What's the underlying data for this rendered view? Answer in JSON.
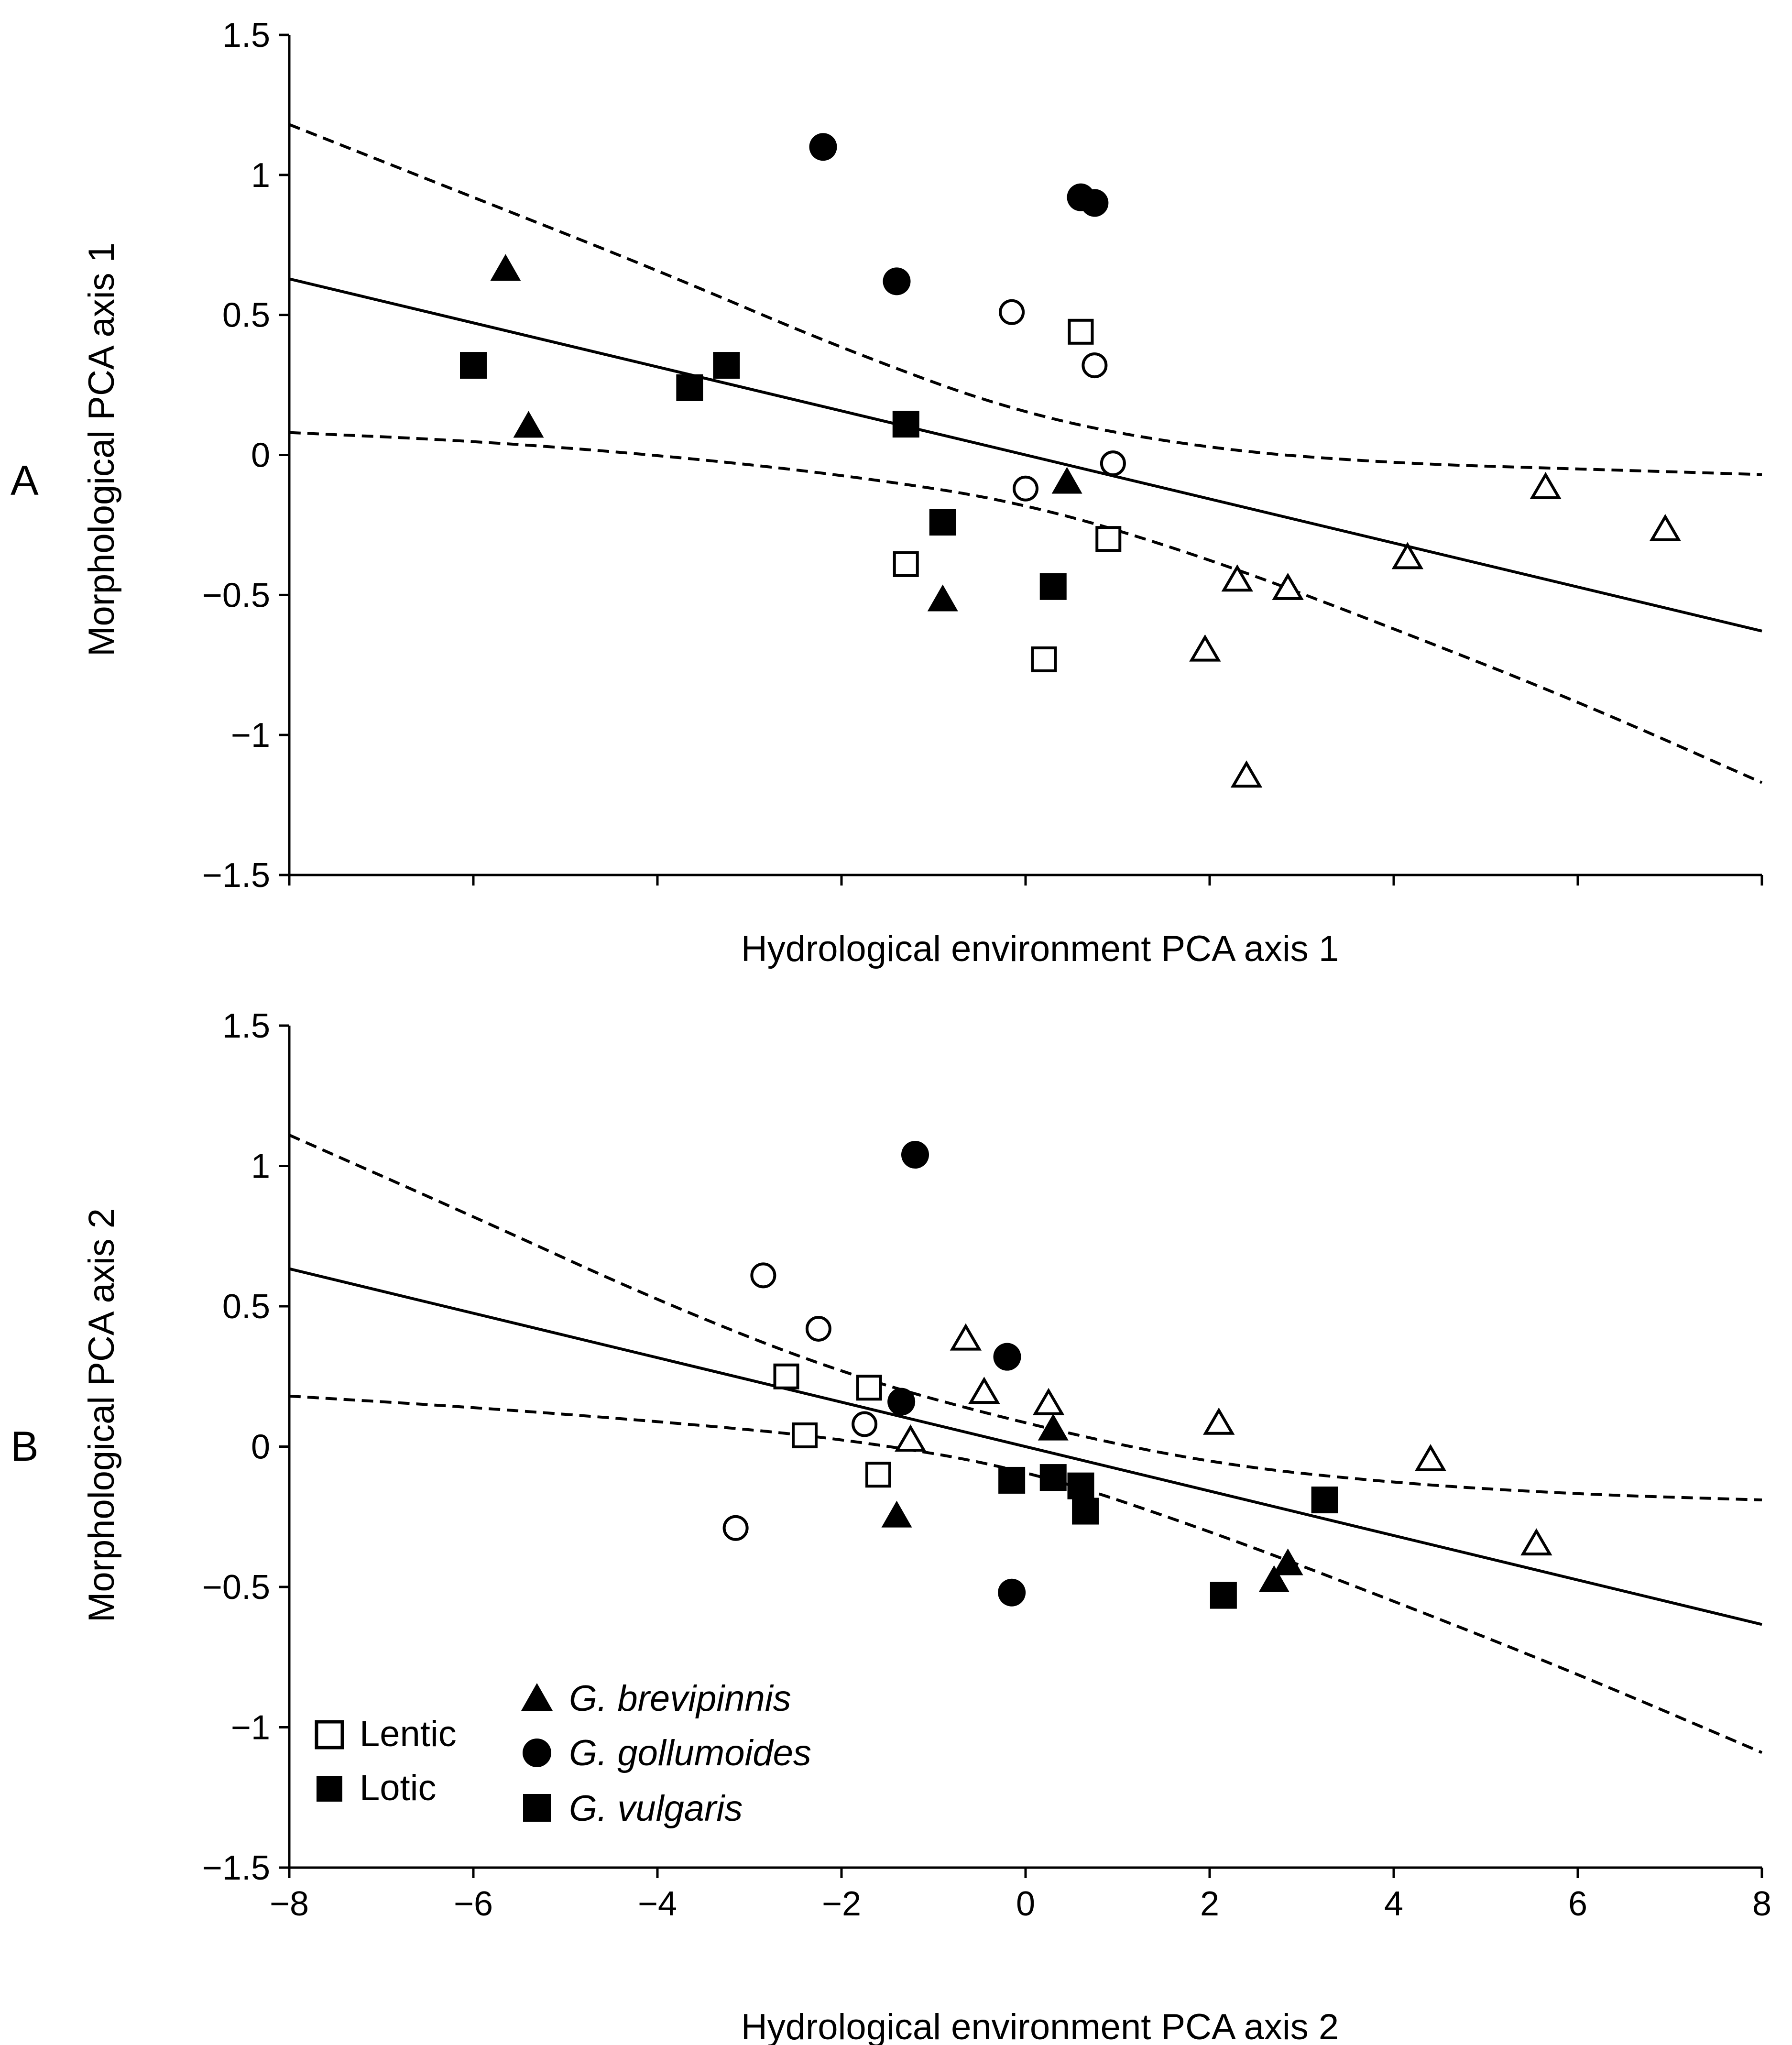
{
  "chart_data": [
    {
      "panel": "A",
      "type": "scatter",
      "xlabel": "Hydrological environment PCA axis 1",
      "ylabel": "Morphological PCA axis 1",
      "xlim": [
        -8,
        8
      ],
      "ylim": [
        -1.5,
        1.5
      ],
      "xticks": [],
      "yticks": [
        "1.5",
        "1",
        "0.5",
        "0",
        "−0.5",
        "−1",
        "−1.5"
      ],
      "regression": {
        "intercept": 0.0,
        "slope": -0.0786
      },
      "ci_upper": [
        [
          -8,
          1.18
        ],
        [
          -6,
          0.92
        ],
        [
          -4,
          0.66
        ],
        [
          -2,
          0.38
        ],
        [
          0,
          0.14
        ],
        [
          2,
          0.02
        ],
        [
          4,
          -0.03
        ],
        [
          6,
          -0.05
        ],
        [
          8,
          -0.07
        ]
      ],
      "ci_lower": [
        [
          -8,
          0.08
        ],
        [
          -6,
          0.05
        ],
        [
          -4,
          0.0
        ],
        [
          -2,
          -0.07
        ],
        [
          0,
          -0.17
        ],
        [
          2,
          -0.37
        ],
        [
          4,
          -0.62
        ],
        [
          6,
          -0.88
        ],
        [
          8,
          -1.17
        ]
      ],
      "points": [
        {
          "x": -5.65,
          "y": 0.66,
          "marker": "triangle",
          "fill": "filled"
        },
        {
          "x": -5.4,
          "y": 0.1,
          "marker": "triangle",
          "fill": "filled"
        },
        {
          "x": -0.9,
          "y": -0.52,
          "marker": "triangle",
          "fill": "filled"
        },
        {
          "x": 0.45,
          "y": -0.1,
          "marker": "triangle",
          "fill": "filled"
        },
        {
          "x": -2.2,
          "y": 1.1,
          "marker": "circle",
          "fill": "filled"
        },
        {
          "x": -1.4,
          "y": 0.62,
          "marker": "circle",
          "fill": "filled"
        },
        {
          "x": 0.6,
          "y": 0.92,
          "marker": "circle",
          "fill": "filled"
        },
        {
          "x": 0.75,
          "y": 0.9,
          "marker": "circle",
          "fill": "filled"
        },
        {
          "x": -6.0,
          "y": 0.32,
          "marker": "square",
          "fill": "filled"
        },
        {
          "x": -3.65,
          "y": 0.24,
          "marker": "square",
          "fill": "filled"
        },
        {
          "x": -3.25,
          "y": 0.32,
          "marker": "square",
          "fill": "filled"
        },
        {
          "x": -1.3,
          "y": 0.11,
          "marker": "square",
          "fill": "filled"
        },
        {
          "x": -0.9,
          "y": -0.24,
          "marker": "square",
          "fill": "filled"
        },
        {
          "x": 0.3,
          "y": -0.47,
          "marker": "square",
          "fill": "filled"
        },
        {
          "x": -0.15,
          "y": 0.51,
          "marker": "circle",
          "fill": "open"
        },
        {
          "x": 0.75,
          "y": 0.32,
          "marker": "circle",
          "fill": "open"
        },
        {
          "x": 0.0,
          "y": -0.12,
          "marker": "circle",
          "fill": "open"
        },
        {
          "x": 0.95,
          "y": -0.03,
          "marker": "circle",
          "fill": "open"
        },
        {
          "x": 0.6,
          "y": 0.44,
          "marker": "square",
          "fill": "open"
        },
        {
          "x": 0.9,
          "y": -0.3,
          "marker": "square",
          "fill": "open"
        },
        {
          "x": -1.3,
          "y": -0.39,
          "marker": "square",
          "fill": "open"
        },
        {
          "x": 0.2,
          "y": -0.73,
          "marker": "square",
          "fill": "open"
        },
        {
          "x": 1.95,
          "y": -0.7,
          "marker": "triangle",
          "fill": "open"
        },
        {
          "x": 2.3,
          "y": -0.45,
          "marker": "triangle",
          "fill": "open"
        },
        {
          "x": 2.4,
          "y": -1.15,
          "marker": "triangle",
          "fill": "open"
        },
        {
          "x": 2.85,
          "y": -0.48,
          "marker": "triangle",
          "fill": "open"
        },
        {
          "x": 4.15,
          "y": -0.37,
          "marker": "triangle",
          "fill": "open"
        },
        {
          "x": 5.65,
          "y": -0.12,
          "marker": "triangle",
          "fill": "open"
        },
        {
          "x": 6.95,
          "y": -0.27,
          "marker": "triangle",
          "fill": "open"
        }
      ]
    },
    {
      "panel": "B",
      "type": "scatter",
      "xlabel": "Hydrological environment PCA axis 2",
      "ylabel": "Morphological PCA axis 2",
      "xlim": [
        -8,
        8
      ],
      "ylim": [
        -1.5,
        1.5
      ],
      "xticks": [
        "−8",
        "−6",
        "−4",
        "−2",
        "0",
        "2",
        "4",
        "6",
        "8"
      ],
      "yticks": [
        "1.5",
        "1",
        "0.5",
        "0",
        "−0.5",
        "−1",
        "−1.5"
      ],
      "regression": {
        "intercept": 0.0,
        "slope": -0.0792
      },
      "ci_upper": [
        [
          -8,
          1.11
        ],
        [
          -6,
          0.82
        ],
        [
          -4,
          0.52
        ],
        [
          -2,
          0.26
        ],
        [
          0,
          0.08
        ],
        [
          2,
          -0.06
        ],
        [
          4,
          -0.13
        ],
        [
          6,
          -0.17
        ],
        [
          8,
          -0.19
        ]
      ],
      "ci_lower": [
        [
          -8,
          0.18
        ],
        [
          -6,
          0.14
        ],
        [
          -4,
          0.09
        ],
        [
          -2,
          0.03
        ],
        [
          0,
          -0.08
        ],
        [
          2,
          -0.3
        ],
        [
          4,
          -0.55
        ],
        [
          6,
          -0.81
        ],
        [
          8,
          -1.09
        ]
      ],
      "points": [
        {
          "x": -1.4,
          "y": -0.25,
          "marker": "triangle",
          "fill": "filled"
        },
        {
          "x": 0.3,
          "y": 0.06,
          "marker": "triangle",
          "fill": "filled"
        },
        {
          "x": 2.7,
          "y": -0.48,
          "marker": "triangle",
          "fill": "filled"
        },
        {
          "x": 2.85,
          "y": -0.42,
          "marker": "triangle",
          "fill": "filled"
        },
        {
          "x": -1.2,
          "y": 1.04,
          "marker": "circle",
          "fill": "filled"
        },
        {
          "x": -0.2,
          "y": 0.32,
          "marker": "circle",
          "fill": "filled"
        },
        {
          "x": -1.35,
          "y": 0.16,
          "marker": "circle",
          "fill": "filled"
        },
        {
          "x": -0.15,
          "y": -0.52,
          "marker": "circle",
          "fill": "filled"
        },
        {
          "x": -0.15,
          "y": -0.12,
          "marker": "square",
          "fill": "filled"
        },
        {
          "x": 0.3,
          "y": -0.11,
          "marker": "square",
          "fill": "filled"
        },
        {
          "x": 0.6,
          "y": -0.14,
          "marker": "square",
          "fill": "filled"
        },
        {
          "x": 0.65,
          "y": -0.23,
          "marker": "square",
          "fill": "filled"
        },
        {
          "x": 2.15,
          "y": -0.53,
          "marker": "square",
          "fill": "filled"
        },
        {
          "x": 3.25,
          "y": -0.19,
          "marker": "square",
          "fill": "filled"
        },
        {
          "x": -2.85,
          "y": 0.61,
          "marker": "circle",
          "fill": "open"
        },
        {
          "x": -2.25,
          "y": 0.42,
          "marker": "circle",
          "fill": "open"
        },
        {
          "x": -1.75,
          "y": 0.08,
          "marker": "circle",
          "fill": "open"
        },
        {
          "x": -3.15,
          "y": -0.29,
          "marker": "circle",
          "fill": "open"
        },
        {
          "x": -2.6,
          "y": 0.25,
          "marker": "square",
          "fill": "open"
        },
        {
          "x": -1.7,
          "y": 0.21,
          "marker": "square",
          "fill": "open"
        },
        {
          "x": -2.4,
          "y": 0.04,
          "marker": "square",
          "fill": "open"
        },
        {
          "x": -1.6,
          "y": -0.1,
          "marker": "square",
          "fill": "open"
        },
        {
          "x": -1.25,
          "y": 0.02,
          "marker": "triangle",
          "fill": "open"
        },
        {
          "x": -0.65,
          "y": 0.38,
          "marker": "triangle",
          "fill": "open"
        },
        {
          "x": -0.45,
          "y": 0.19,
          "marker": "triangle",
          "fill": "open"
        },
        {
          "x": 0.25,
          "y": 0.15,
          "marker": "triangle",
          "fill": "open"
        },
        {
          "x": 2.1,
          "y": 0.08,
          "marker": "triangle",
          "fill": "open"
        },
        {
          "x": 4.4,
          "y": -0.05,
          "marker": "triangle",
          "fill": "open"
        },
        {
          "x": 5.55,
          "y": -0.35,
          "marker": "triangle",
          "fill": "open"
        }
      ],
      "legend": {
        "position": "bottom-left",
        "habitat": [
          {
            "label": "Lentic",
            "marker": "square",
            "fill": "open"
          },
          {
            "label": "Lotic",
            "marker": "square",
            "fill": "filled"
          }
        ],
        "species": [
          {
            "label": "G. brevipinnis",
            "marker": "triangle",
            "fill": "filled"
          },
          {
            "label": "G. gollumoides",
            "marker": "circle",
            "fill": "filled"
          },
          {
            "label": "G. vulgaris",
            "marker": "square",
            "fill": "filled"
          }
        ]
      }
    }
  ]
}
